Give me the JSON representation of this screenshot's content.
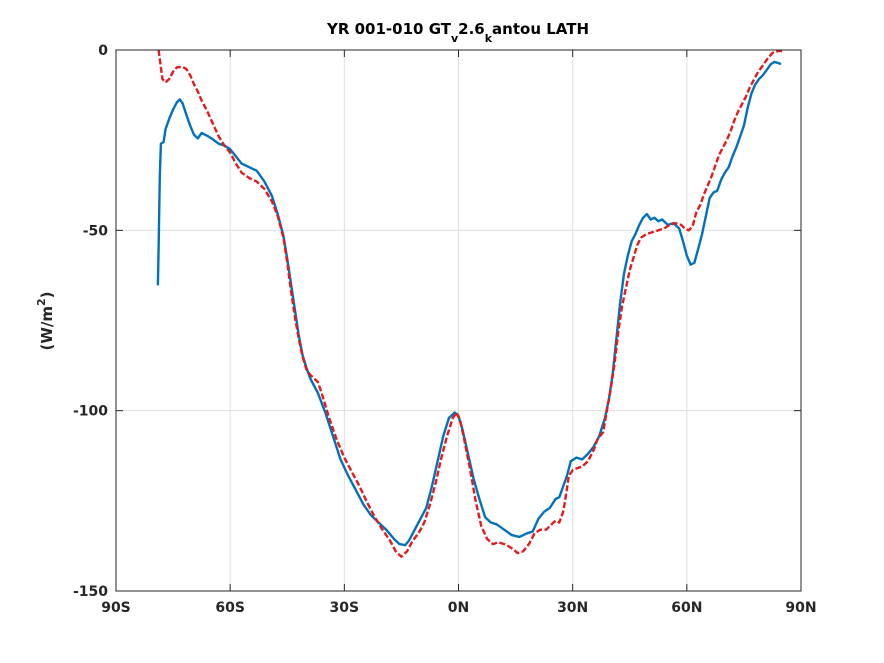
{
  "chart_data": {
    "type": "line",
    "title": {
      "prefix": "YR 001-010 GT",
      "sub1": "v",
      "middle": "2.6",
      "sub2": "k",
      "suffix": "antou LATH"
    },
    "ylabel": {
      "prefix": "(W/m",
      "sup": "2",
      "suffix": ")"
    },
    "xlim": [
      -90,
      90
    ],
    "ylim": [
      -150,
      0
    ],
    "grid": true,
    "x_ticks": [
      {
        "value": -90,
        "label": "90S"
      },
      {
        "value": -60,
        "label": "60S"
      },
      {
        "value": -30,
        "label": "30S"
      },
      {
        "value": 0,
        "label": "0N"
      },
      {
        "value": 30,
        "label": "30N"
      },
      {
        "value": 60,
        "label": "60N"
      },
      {
        "value": 90,
        "label": "90N"
      }
    ],
    "y_ticks": [
      {
        "value": 0,
        "label": "0"
      },
      {
        "value": -50,
        "label": "-50"
      },
      {
        "value": -100,
        "label": "-100"
      },
      {
        "value": -150,
        "label": "-150"
      }
    ],
    "series": [
      {
        "color": "#0072BD",
        "style": "solid",
        "points": [
          [
            -79,
            -65
          ],
          [
            -78.8,
            -55
          ],
          [
            -78.5,
            -35
          ],
          [
            -78.2,
            -26
          ],
          [
            -77.5,
            -25.5
          ],
          [
            -77,
            -22
          ],
          [
            -76,
            -19
          ],
          [
            -75,
            -16.5
          ],
          [
            -74,
            -14.5
          ],
          [
            -73.2,
            -13.7
          ],
          [
            -72.5,
            -14.8
          ],
          [
            -71.5,
            -18
          ],
          [
            -70.5,
            -21
          ],
          [
            -69.5,
            -23.5
          ],
          [
            -68.5,
            -24.5
          ],
          [
            -67.5,
            -23
          ],
          [
            -66,
            -23.8
          ],
          [
            -64.5,
            -24.8
          ],
          [
            -63,
            -26
          ],
          [
            -61.5,
            -26.5
          ],
          [
            -60,
            -27.5
          ],
          [
            -58.5,
            -29.5
          ],
          [
            -57,
            -31.5
          ],
          [
            -55,
            -32.5
          ],
          [
            -53,
            -33.5
          ],
          [
            -51,
            -36.5
          ],
          [
            -49,
            -40.5
          ],
          [
            -47.5,
            -45.5
          ],
          [
            -46,
            -51.5
          ],
          [
            -45,
            -58
          ],
          [
            -44,
            -65
          ],
          [
            -43,
            -72
          ],
          [
            -42,
            -79
          ],
          [
            -41,
            -84.5
          ],
          [
            -40,
            -88
          ],
          [
            -39,
            -91
          ],
          [
            -38,
            -93
          ],
          [
            -37,
            -95
          ],
          [
            -35,
            -100.5
          ],
          [
            -33,
            -107
          ],
          [
            -31,
            -113.5
          ],
          [
            -29,
            -118
          ],
          [
            -27,
            -122
          ],
          [
            -25,
            -126
          ],
          [
            -23,
            -129
          ],
          [
            -21,
            -131
          ],
          [
            -19,
            -133
          ],
          [
            -17,
            -135.5
          ],
          [
            -15.5,
            -137
          ],
          [
            -14,
            -137.3
          ],
          [
            -13,
            -136
          ],
          [
            -11.5,
            -133
          ],
          [
            -10,
            -130
          ],
          [
            -8.5,
            -127
          ],
          [
            -7,
            -121
          ],
          [
            -5.5,
            -114
          ],
          [
            -4,
            -107
          ],
          [
            -2.5,
            -102
          ],
          [
            -1,
            -100.5
          ],
          [
            0,
            -101.5
          ],
          [
            1,
            -105
          ],
          [
            2.5,
            -112
          ],
          [
            4,
            -119
          ],
          [
            5.5,
            -124.5
          ],
          [
            7,
            -129.5
          ],
          [
            8.5,
            -131
          ],
          [
            10,
            -131.5
          ],
          [
            12,
            -133
          ],
          [
            14,
            -134.5
          ],
          [
            16,
            -135
          ],
          [
            18,
            -134
          ],
          [
            19.5,
            -133.5
          ],
          [
            21,
            -130
          ],
          [
            22.5,
            -128
          ],
          [
            24,
            -127
          ],
          [
            25.5,
            -124.5
          ],
          [
            26.5,
            -124
          ],
          [
            27.5,
            -121
          ],
          [
            28.5,
            -118
          ],
          [
            29.5,
            -114
          ],
          [
            31,
            -113
          ],
          [
            32.5,
            -113.5
          ],
          [
            34,
            -112
          ],
          [
            35.5,
            -110
          ],
          [
            37,
            -107
          ],
          [
            38.5,
            -102
          ],
          [
            39.5,
            -97
          ],
          [
            40.5,
            -90
          ],
          [
            41.5,
            -80
          ],
          [
            42.5,
            -70
          ],
          [
            43.5,
            -62
          ],
          [
            44.5,
            -57
          ],
          [
            45.5,
            -53
          ],
          [
            46.5,
            -51
          ],
          [
            47.5,
            -48.5
          ],
          [
            48.5,
            -46.5
          ],
          [
            49.5,
            -45.5
          ],
          [
            50.5,
            -47
          ],
          [
            51.5,
            -46.5
          ],
          [
            52.5,
            -47.5
          ],
          [
            53.5,
            -47
          ],
          [
            55,
            -48.5
          ],
          [
            56.5,
            -48
          ],
          [
            58,
            -49.5
          ],
          [
            59,
            -53
          ],
          [
            60,
            -57
          ],
          [
            61,
            -59.5
          ],
          [
            62,
            -59
          ],
          [
            63,
            -55
          ],
          [
            64,
            -51
          ],
          [
            65,
            -46
          ],
          [
            66,
            -41
          ],
          [
            67,
            -39.5
          ],
          [
            68,
            -39
          ],
          [
            69,
            -36
          ],
          [
            70,
            -34
          ],
          [
            71,
            -32.5
          ],
          [
            72,
            -29.5
          ],
          [
            73,
            -27
          ],
          [
            74,
            -24
          ],
          [
            75,
            -21
          ],
          [
            76,
            -16
          ],
          [
            77,
            -12
          ],
          [
            78,
            -9.5
          ],
          [
            79,
            -8
          ],
          [
            80,
            -7
          ],
          [
            81,
            -5.5
          ],
          [
            82,
            -4
          ],
          [
            83,
            -3.3
          ],
          [
            84.5,
            -3.8
          ]
        ]
      },
      {
        "color": "#E41A1C",
        "style": "dashed",
        "points": [
          [
            -78.8,
            0
          ],
          [
            -78.3,
            -4
          ],
          [
            -77.8,
            -8
          ],
          [
            -77,
            -9
          ],
          [
            -76,
            -8
          ],
          [
            -75,
            -6
          ],
          [
            -74,
            -4.8
          ],
          [
            -72.5,
            -4.7
          ],
          [
            -71.5,
            -5.3
          ],
          [
            -70.5,
            -7
          ],
          [
            -69.5,
            -9.5
          ],
          [
            -68.5,
            -11.5
          ],
          [
            -67.5,
            -14
          ],
          [
            -66,
            -17
          ],
          [
            -64.5,
            -20.5
          ],
          [
            -63,
            -24
          ],
          [
            -61.5,
            -26.5
          ],
          [
            -60,
            -28.5
          ],
          [
            -58.5,
            -31.5
          ],
          [
            -57,
            -34
          ],
          [
            -55,
            -35.5
          ],
          [
            -53,
            -36.5
          ],
          [
            -51,
            -38.5
          ],
          [
            -49,
            -42
          ],
          [
            -47.5,
            -46
          ],
          [
            -46,
            -52
          ],
          [
            -45,
            -59
          ],
          [
            -44,
            -67
          ],
          [
            -43,
            -74
          ],
          [
            -42,
            -80
          ],
          [
            -41,
            -85
          ],
          [
            -40,
            -88.5
          ],
          [
            -39,
            -90
          ],
          [
            -37,
            -92
          ],
          [
            -36,
            -95
          ],
          [
            -34,
            -102
          ],
          [
            -32,
            -108
          ],
          [
            -30,
            -113
          ],
          [
            -28,
            -117
          ],
          [
            -26,
            -121
          ],
          [
            -24,
            -125.5
          ],
          [
            -22,
            -129.5
          ],
          [
            -20,
            -133
          ],
          [
            -18,
            -136
          ],
          [
            -16.5,
            -139
          ],
          [
            -15,
            -140.5
          ],
          [
            -13.5,
            -139
          ],
          [
            -12,
            -136
          ],
          [
            -10.5,
            -134
          ],
          [
            -9,
            -131
          ],
          [
            -7.5,
            -126
          ],
          [
            -6,
            -120
          ],
          [
            -4.5,
            -113
          ],
          [
            -3,
            -107
          ],
          [
            -1.5,
            -102
          ],
          [
            -0.5,
            -100.5
          ],
          [
            0.5,
            -103
          ],
          [
            1.5,
            -108
          ],
          [
            3,
            -116
          ],
          [
            4.5,
            -125
          ],
          [
            6,
            -132
          ],
          [
            7.5,
            -135.5
          ],
          [
            9,
            -137
          ],
          [
            10.5,
            -136.5
          ],
          [
            12,
            -137
          ],
          [
            13,
            -137.5
          ],
          [
            14.5,
            -138.5
          ],
          [
            15.5,
            -139.5
          ],
          [
            17,
            -139
          ],
          [
            18.5,
            -137
          ],
          [
            20,
            -134
          ],
          [
            21.5,
            -133
          ],
          [
            23,
            -133
          ],
          [
            24.5,
            -131.5
          ],
          [
            25.5,
            -130.5
          ],
          [
            26.5,
            -131
          ],
          [
            27.5,
            -128
          ],
          [
            28,
            -125
          ],
          [
            29,
            -118
          ],
          [
            30,
            -116.5
          ],
          [
            31,
            -116
          ],
          [
            32.5,
            -115.5
          ],
          [
            34,
            -114
          ],
          [
            35.5,
            -111
          ],
          [
            36.5,
            -108
          ],
          [
            38,
            -106
          ],
          [
            39,
            -100
          ],
          [
            40,
            -94
          ],
          [
            41,
            -87
          ],
          [
            42,
            -78
          ],
          [
            43,
            -71
          ],
          [
            44,
            -66
          ],
          [
            45,
            -61
          ],
          [
            46,
            -57.5
          ],
          [
            47,
            -54
          ],
          [
            48,
            -52
          ],
          [
            49.5,
            -51
          ],
          [
            51,
            -50.5
          ],
          [
            52.5,
            -50
          ],
          [
            54,
            -49.5
          ],
          [
            55.5,
            -48.5
          ],
          [
            57,
            -48
          ],
          [
            58.5,
            -48.5
          ],
          [
            59.5,
            -49.5
          ],
          [
            60.5,
            -50
          ],
          [
            61.5,
            -49
          ],
          [
            62.5,
            -45
          ],
          [
            63.5,
            -43
          ],
          [
            64.5,
            -40
          ],
          [
            65.5,
            -37.5
          ],
          [
            66.5,
            -35
          ],
          [
            67.5,
            -32
          ],
          [
            68.5,
            -29
          ],
          [
            69.5,
            -27
          ],
          [
            70.5,
            -25
          ],
          [
            71.5,
            -22.5
          ],
          [
            72.5,
            -19.5
          ],
          [
            73.5,
            -17
          ],
          [
            74.5,
            -15
          ],
          [
            75.5,
            -13
          ],
          [
            76.5,
            -10.5
          ],
          [
            77.5,
            -8.5
          ],
          [
            78.5,
            -6.5
          ],
          [
            79.5,
            -5
          ],
          [
            80.5,
            -3.5
          ],
          [
            81.5,
            -2
          ],
          [
            82.5,
            -0.8
          ],
          [
            84,
            -0.3
          ],
          [
            85,
            -0.3
          ]
        ]
      }
    ]
  }
}
